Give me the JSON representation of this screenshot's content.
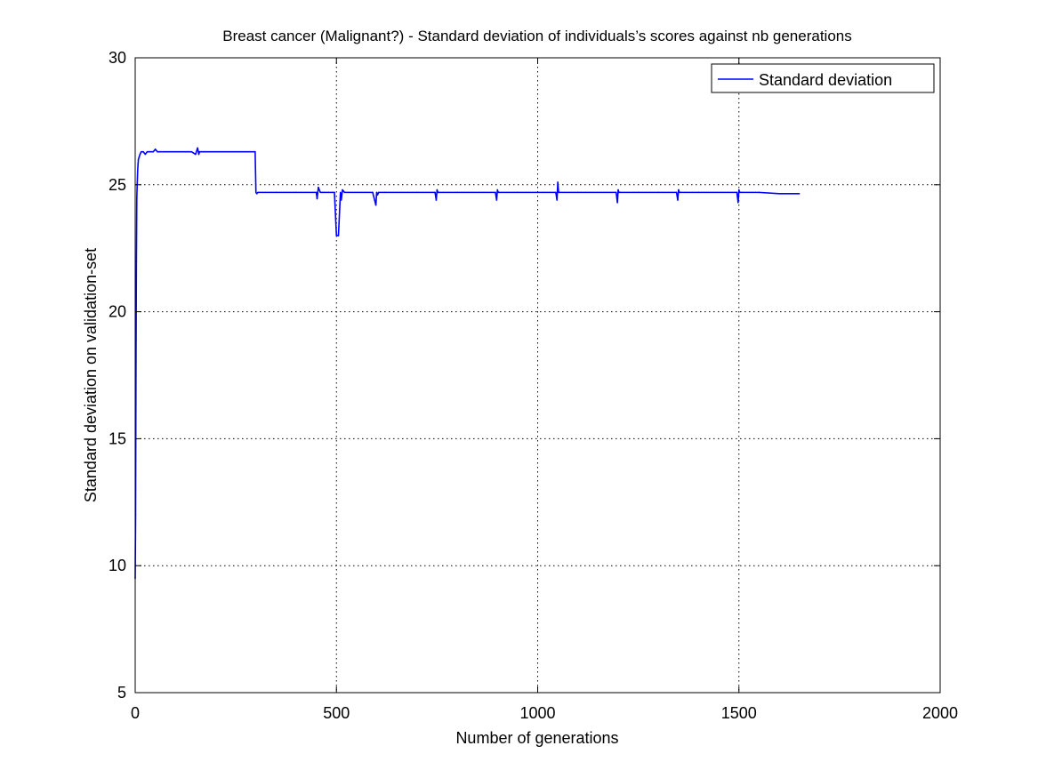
{
  "chart_data": {
    "type": "line",
    "title": "Breast cancer (Malignant?) - Standard deviation of individuals’s scores against nb generations",
    "xlabel": "Number of generations",
    "ylabel": "Standard deviation on validation-set",
    "xlim": [
      0,
      2000
    ],
    "ylim": [
      5,
      30
    ],
    "xticks": [
      0,
      500,
      1000,
      1500,
      2000
    ],
    "yticks": [
      5,
      10,
      15,
      20,
      25,
      30
    ],
    "xtick_labels": [
      "0",
      "500",
      "1000",
      "1500",
      "2000"
    ],
    "ytick_labels": [
      "5",
      "10",
      "15",
      "20",
      "25",
      "30"
    ],
    "grid": true,
    "legend_position": "top-right",
    "series": [
      {
        "name": "Standard deviation",
        "color": "#0000ff",
        "x": [
          0,
          1,
          2,
          3,
          4,
          5,
          6,
          7,
          8,
          10,
          12,
          15,
          20,
          25,
          30,
          35,
          40,
          45,
          50,
          55,
          60,
          80,
          100,
          120,
          140,
          150,
          155,
          158,
          160,
          165,
          200,
          250,
          298,
          300,
          302,
          305,
          350,
          400,
          450,
          452,
          455,
          460,
          465,
          470,
          480,
          490,
          495,
          500,
          505,
          510,
          512,
          515,
          520,
          590,
          598,
          600,
          602,
          605,
          620,
          700,
          745,
          748,
          750,
          752,
          755,
          800,
          895,
          898,
          900,
          902,
          905,
          950,
          1000,
          1045,
          1048,
          1050,
          1052,
          1055,
          1100,
          1195,
          1198,
          1200,
          1202,
          1205,
          1250,
          1300,
          1345,
          1348,
          1350,
          1352,
          1355,
          1400,
          1495,
          1498,
          1500,
          1502,
          1505,
          1550,
          1600,
          1650
        ],
        "values": [
          9.5,
          12.0,
          18.0,
          22.0,
          24.5,
          25.0,
          25.5,
          25.8,
          26.0,
          26.1,
          26.2,
          26.3,
          26.3,
          26.2,
          26.3,
          26.3,
          26.3,
          26.3,
          26.4,
          26.3,
          26.3,
          26.3,
          26.3,
          26.3,
          26.3,
          26.2,
          26.45,
          26.2,
          26.3,
          26.3,
          26.3,
          26.3,
          26.3,
          24.7,
          24.65,
          24.7,
          24.7,
          24.7,
          24.7,
          24.45,
          24.9,
          24.7,
          24.7,
          24.7,
          24.7,
          24.7,
          24.7,
          23.0,
          23.0,
          24.7,
          24.4,
          24.8,
          24.7,
          24.7,
          24.2,
          24.7,
          24.6,
          24.7,
          24.7,
          24.7,
          24.7,
          24.4,
          24.8,
          24.7,
          24.7,
          24.7,
          24.7,
          24.4,
          24.8,
          24.7,
          24.7,
          24.7,
          24.7,
          24.7,
          24.4,
          25.1,
          24.7,
          24.7,
          24.7,
          24.7,
          24.3,
          24.8,
          24.7,
          24.7,
          24.7,
          24.7,
          24.7,
          24.4,
          24.8,
          24.7,
          24.7,
          24.7,
          24.7,
          24.3,
          24.8,
          24.7,
          24.7,
          24.7,
          24.65,
          24.65
        ]
      }
    ]
  }
}
